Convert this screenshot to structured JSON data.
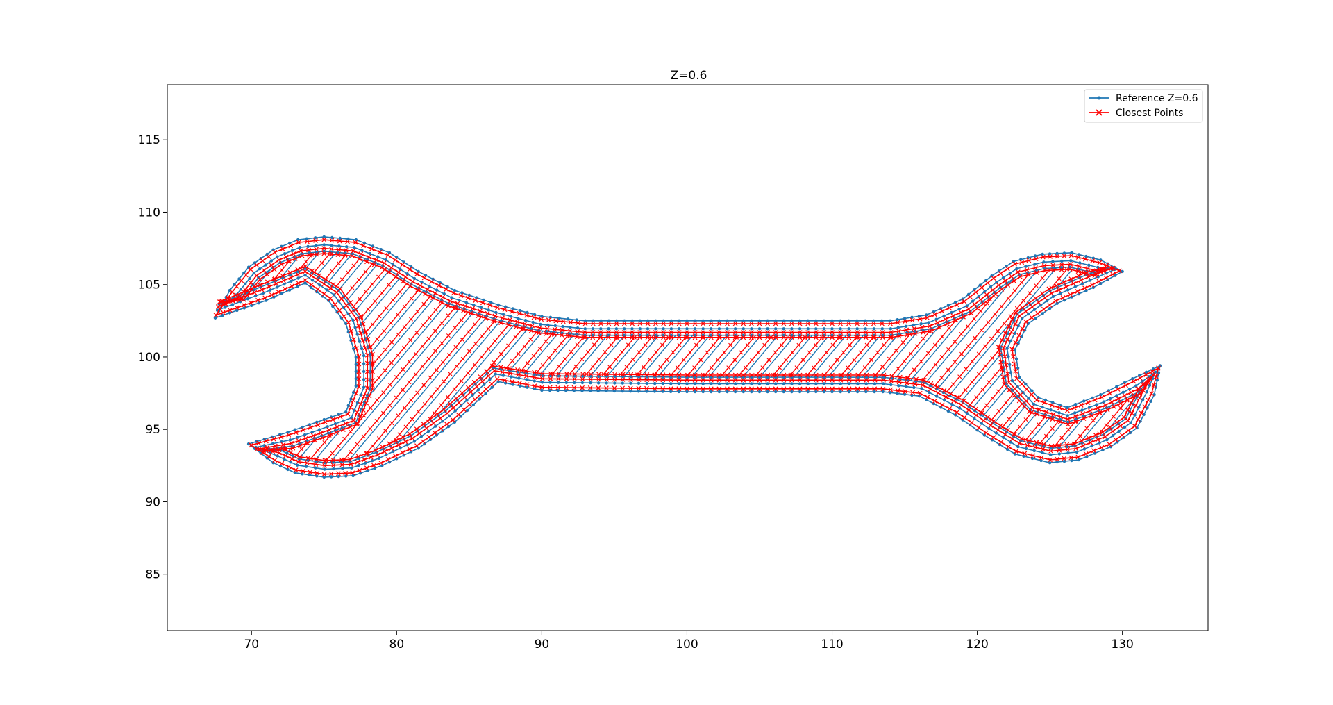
{
  "chart_data": {
    "type": "line",
    "title": "Z=0.6",
    "xlabel": "",
    "ylabel": "",
    "xlim": [
      64.2,
      135.9
    ],
    "ylim": [
      81.1,
      118.8
    ],
    "x_ticks": [
      70,
      80,
      90,
      100,
      110,
      120,
      130
    ],
    "y_ticks": [
      85,
      90,
      95,
      100,
      105,
      110,
      115
    ],
    "grid": false,
    "legend_position": "top-right",
    "series": [
      {
        "name": "Reference Z=0.6",
        "color": "#1f77b4",
        "marker": "dot",
        "outline": [
          [
            67.5,
            102.7
          ],
          [
            68.5,
            104.6
          ],
          [
            69.8,
            106.2
          ],
          [
            71.5,
            107.4
          ],
          [
            73.2,
            108.1
          ],
          [
            75.0,
            108.3
          ],
          [
            77.2,
            108.1
          ],
          [
            79.5,
            107.2
          ],
          [
            81.5,
            105.9
          ],
          [
            84.0,
            104.6
          ],
          [
            87.0,
            103.6
          ],
          [
            90.0,
            102.8
          ],
          [
            93.0,
            102.5
          ],
          [
            100.0,
            102.5
          ],
          [
            110.0,
            102.5
          ],
          [
            114.0,
            102.5
          ],
          [
            116.5,
            102.9
          ],
          [
            119.0,
            104.0
          ],
          [
            121.0,
            105.6
          ],
          [
            122.5,
            106.6
          ],
          [
            124.5,
            107.1
          ],
          [
            126.5,
            107.2
          ],
          [
            128.5,
            106.7
          ],
          [
            130.0,
            105.9
          ],
          [
            128.0,
            104.8
          ],
          [
            125.5,
            103.7
          ],
          [
            123.5,
            102.3
          ],
          [
            122.6,
            100.5
          ],
          [
            122.9,
            98.6
          ],
          [
            124.2,
            97.2
          ],
          [
            126.2,
            96.5
          ],
          [
            128.5,
            97.4
          ],
          [
            130.7,
            98.5
          ],
          [
            132.6,
            99.4
          ],
          [
            132.2,
            97.4
          ],
          [
            131.0,
            95.1
          ],
          [
            129.2,
            93.8
          ],
          [
            127.0,
            92.9
          ],
          [
            125.0,
            92.7
          ],
          [
            122.6,
            93.3
          ],
          [
            120.5,
            94.6
          ],
          [
            118.5,
            96.0
          ],
          [
            116.0,
            97.3
          ],
          [
            113.5,
            97.6
          ],
          [
            110.0,
            97.6
          ],
          [
            100.0,
            97.6
          ],
          [
            90.0,
            97.7
          ],
          [
            87.0,
            98.3
          ],
          [
            84.0,
            95.5
          ],
          [
            81.5,
            93.7
          ],
          [
            79.0,
            92.5
          ],
          [
            77.0,
            91.8
          ],
          [
            75.0,
            91.7
          ],
          [
            73.0,
            92.0
          ],
          [
            71.5,
            92.7
          ],
          [
            69.8,
            94.0
          ],
          [
            72.5,
            94.8
          ],
          [
            74.5,
            95.5
          ],
          [
            76.5,
            96.2
          ],
          [
            77.2,
            98.0
          ],
          [
            77.2,
            100.0
          ],
          [
            76.5,
            102.3
          ],
          [
            75.3,
            103.9
          ],
          [
            73.7,
            105.1
          ],
          [
            71.0,
            103.9
          ],
          [
            67.5,
            102.7
          ]
        ],
        "hatch_spacing": 0.9,
        "hatch_angle_deg": 50
      },
      {
        "name": "Closest Points",
        "color": "#ff0000",
        "marker": "x",
        "outline_offset": 0.35,
        "hatch_spacing": 0.9,
        "hatch_angle_deg": 50
      }
    ]
  }
}
